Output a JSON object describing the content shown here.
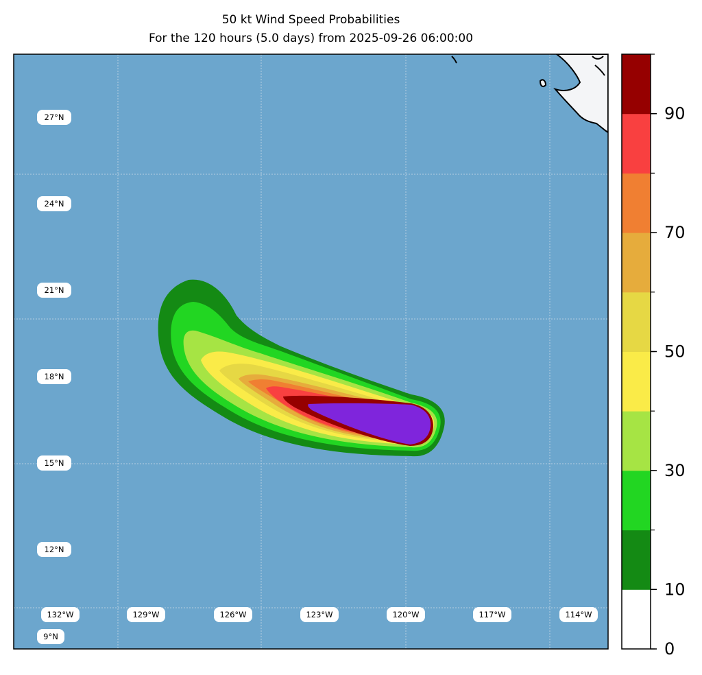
{
  "title": "50 kt Wind Speed Probabilities",
  "subtitle": "For the 120 hours (5.0 days) from 2025-09-26 06:00:00",
  "map": {
    "ocean_color": "#6ca6cd",
    "land_color": "#f4f5f7",
    "lat_labels": [
      "27°N",
      "24°N",
      "21°N",
      "18°N",
      "15°N",
      "12°N",
      "9°N"
    ],
    "lon_labels": [
      "132°W",
      "129°W",
      "126°W",
      "123°W",
      "120°W",
      "117°W",
      "114°W"
    ]
  },
  "colorbar": {
    "levels": [
      0,
      10,
      20,
      30,
      40,
      50,
      60,
      70,
      80,
      90,
      100
    ],
    "colors": [
      "#ffffff",
      "#148a14",
      "#22d622",
      "#a6e444",
      "#faeb48",
      "#e6d844",
      "#e6ac3c",
      "#f07f32",
      "#f94040",
      "#960000",
      "#7f25dc"
    ],
    "tick_labels": [
      "0",
      "10",
      "30",
      "50",
      "70",
      "90"
    ]
  },
  "chart_data": {
    "type": "heatmap",
    "title": "50 kt Wind Speed Probabilities",
    "subtitle": "For the 120 hours (5.0 days) from 2025-09-26 06:00:00",
    "xlabel": "",
    "ylabel": "",
    "x_ticks": [
      "132°W",
      "129°W",
      "126°W",
      "123°W",
      "120°W",
      "117°W",
      "114°W"
    ],
    "y_ticks": [
      "27°N",
      "24°N",
      "21°N",
      "18°N",
      "15°N",
      "12°N",
      "9°N"
    ],
    "colorbar_range": [
      0,
      100
    ],
    "colorbar_ticks": [
      0,
      10,
      30,
      50,
      70,
      90
    ],
    "probability_bands": [
      {
        "min": 0,
        "max": 10,
        "color": "#ffffff"
      },
      {
        "min": 10,
        "max": 20,
        "color": "#148a14"
      },
      {
        "min": 20,
        "max": 30,
        "color": "#22d622"
      },
      {
        "min": 30,
        "max": 40,
        "color": "#a6e444"
      },
      {
        "min": 40,
        "max": 50,
        "color": "#faeb48"
      },
      {
        "min": 50,
        "max": 60,
        "color": "#e6d844"
      },
      {
        "min": 60,
        "max": 70,
        "color": "#e6ac3c"
      },
      {
        "min": 70,
        "max": 80,
        "color": "#f07f32"
      },
      {
        "min": 80,
        "max": 90,
        "color": "#f94040"
      },
      {
        "min": 90,
        "max": 100,
        "color": "#960000"
      },
      {
        "min": 100,
        "max": 100,
        "color": "#7f25dc"
      }
    ]
  }
}
